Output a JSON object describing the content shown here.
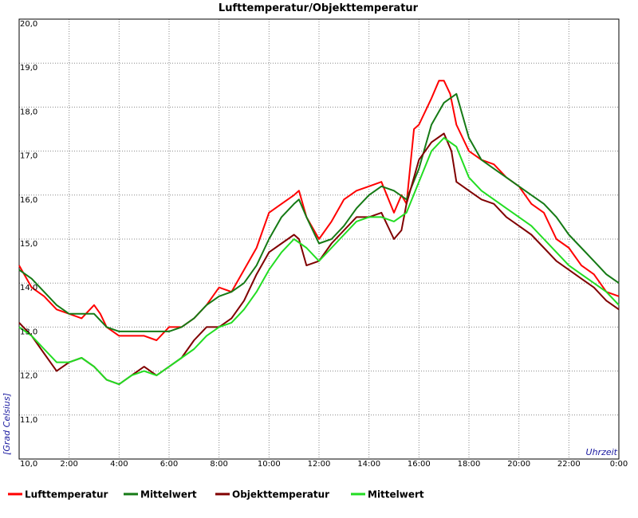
{
  "chart_data": {
    "type": "line",
    "title": "Lufttemperatur/Objekttemperatur",
    "xlabel": "Uhrzeit",
    "ylabel": "[Grad Celsius]",
    "ylim": [
      10.0,
      20.0
    ],
    "xlim": [
      0,
      24
    ],
    "y_ticks": [
      "10,0",
      "11,0",
      "12,0",
      "13,0",
      "14,0",
      "15,0",
      "16,0",
      "17,0",
      "18,0",
      "19,0",
      "20,0"
    ],
    "x_ticks": [
      "2:00",
      "4:00",
      "6:00",
      "8:00",
      "10:00",
      "12:00",
      "14:00",
      "16:00",
      "18:00",
      "20:00",
      "22:00",
      "0:00"
    ],
    "grid": true,
    "legend_position": "bottom",
    "series": [
      {
        "name": "Lufttemperatur",
        "color": "#ff0000",
        "x": [
          0,
          0.5,
          1,
          1.5,
          2,
          2.5,
          3,
          3.25,
          3.5,
          3.75,
          4,
          4.5,
          5,
          5.5,
          6,
          6.5,
          7,
          7.5,
          8,
          8.5,
          9,
          9.5,
          10,
          10.5,
          11,
          11.2,
          11.5,
          12,
          12.5,
          13,
          13.5,
          14,
          14.5,
          15,
          15.3,
          15.5,
          15.8,
          16,
          16.5,
          16.8,
          17,
          17.25,
          17.5,
          18,
          18.5,
          19,
          19.5,
          20,
          20.5,
          21,
          21.5,
          22,
          22.5,
          23,
          23.5,
          24
        ],
        "y": [
          14.4,
          13.9,
          13.7,
          13.4,
          13.3,
          13.2,
          13.5,
          13.3,
          13.0,
          12.9,
          12.8,
          12.8,
          12.8,
          12.7,
          13.0,
          13.0,
          13.2,
          13.5,
          13.9,
          13.8,
          14.3,
          14.8,
          15.6,
          15.8,
          16.0,
          16.1,
          15.5,
          15.0,
          15.4,
          15.9,
          16.1,
          16.2,
          16.3,
          15.6,
          16.0,
          15.8,
          17.5,
          17.6,
          18.2,
          18.6,
          18.6,
          18.3,
          17.6,
          17.0,
          16.8,
          16.7,
          16.4,
          16.2,
          15.8,
          15.6,
          15.0,
          14.8,
          14.4,
          14.2,
          13.8,
          13.7
        ]
      },
      {
        "name": "Mittelwert",
        "color": "#157a15",
        "x": [
          0,
          0.5,
          1,
          1.5,
          2,
          2.5,
          3,
          3.5,
          4,
          4.5,
          5,
          5.5,
          6,
          6.5,
          7,
          7.5,
          8,
          8.5,
          9,
          9.5,
          10,
          10.5,
          11,
          11.2,
          11.5,
          12,
          12.5,
          13,
          13.5,
          14,
          14.5,
          15,
          15.5,
          16,
          16.5,
          17,
          17.5,
          18,
          18.5,
          19,
          19.5,
          20,
          20.5,
          21,
          21.5,
          22,
          22.5,
          23,
          23.5,
          24
        ],
        "y": [
          14.3,
          14.1,
          13.8,
          13.5,
          13.3,
          13.3,
          13.3,
          13.0,
          12.9,
          12.9,
          12.9,
          12.9,
          12.9,
          13.0,
          13.2,
          13.5,
          13.7,
          13.8,
          14.0,
          14.4,
          15.0,
          15.5,
          15.8,
          15.9,
          15.5,
          14.9,
          15.0,
          15.3,
          15.7,
          16.0,
          16.2,
          16.1,
          15.9,
          16.6,
          17.6,
          18.1,
          18.3,
          17.3,
          16.8,
          16.6,
          16.4,
          16.2,
          16.0,
          15.8,
          15.5,
          15.1,
          14.8,
          14.5,
          14.2,
          14.0
        ]
      },
      {
        "name": "Objekttemperatur",
        "color": "#800000",
        "x": [
          0,
          0.5,
          1,
          1.5,
          2,
          2.5,
          3,
          3.5,
          4,
          4.5,
          5,
          5.5,
          6,
          6.5,
          7,
          7.5,
          8,
          8.5,
          9,
          9.5,
          10,
          10.5,
          11,
          11.2,
          11.5,
          12,
          12.5,
          13,
          13.5,
          14,
          14.5,
          15,
          15.3,
          15.5,
          16,
          16.5,
          17,
          17.3,
          17.5,
          18,
          18.5,
          19,
          19.5,
          20,
          20.5,
          21,
          21.5,
          22,
          22.5,
          23,
          23.5,
          24
        ],
        "y": [
          13.1,
          12.8,
          12.4,
          12.0,
          12.2,
          12.3,
          12.1,
          11.8,
          11.7,
          11.9,
          12.1,
          11.9,
          12.1,
          12.3,
          12.7,
          13.0,
          13.0,
          13.2,
          13.6,
          14.2,
          14.7,
          14.9,
          15.1,
          15.0,
          14.4,
          14.5,
          14.9,
          15.2,
          15.5,
          15.5,
          15.6,
          15.0,
          15.2,
          15.8,
          16.8,
          17.2,
          17.4,
          17.0,
          16.3,
          16.1,
          15.9,
          15.8,
          15.5,
          15.3,
          15.1,
          14.8,
          14.5,
          14.3,
          14.1,
          13.9,
          13.6,
          13.4
        ]
      },
      {
        "name": "Mittelwert",
        "color": "#22dd22",
        "x": [
          0,
          0.5,
          1,
          1.5,
          2,
          2.5,
          3,
          3.5,
          4,
          4.5,
          5,
          5.5,
          6,
          6.5,
          7,
          7.5,
          8,
          8.5,
          9,
          9.5,
          10,
          10.5,
          11,
          11.5,
          12,
          12.5,
          13,
          13.5,
          14,
          14.5,
          15,
          15.5,
          16,
          16.5,
          17,
          17.5,
          18,
          18.5,
          19,
          19.5,
          20,
          20.5,
          21,
          21.5,
          22,
          22.5,
          23,
          23.5,
          24
        ],
        "y": [
          13.0,
          12.8,
          12.5,
          12.2,
          12.2,
          12.3,
          12.1,
          11.8,
          11.7,
          11.9,
          12.0,
          11.9,
          12.1,
          12.3,
          12.5,
          12.8,
          13.0,
          13.1,
          13.4,
          13.8,
          14.3,
          14.7,
          15.0,
          14.8,
          14.5,
          14.8,
          15.1,
          15.4,
          15.5,
          15.5,
          15.4,
          15.6,
          16.3,
          17.0,
          17.3,
          17.1,
          16.4,
          16.1,
          15.9,
          15.7,
          15.5,
          15.3,
          15.0,
          14.7,
          14.4,
          14.2,
          14.0,
          13.8,
          13.5
        ]
      }
    ]
  }
}
